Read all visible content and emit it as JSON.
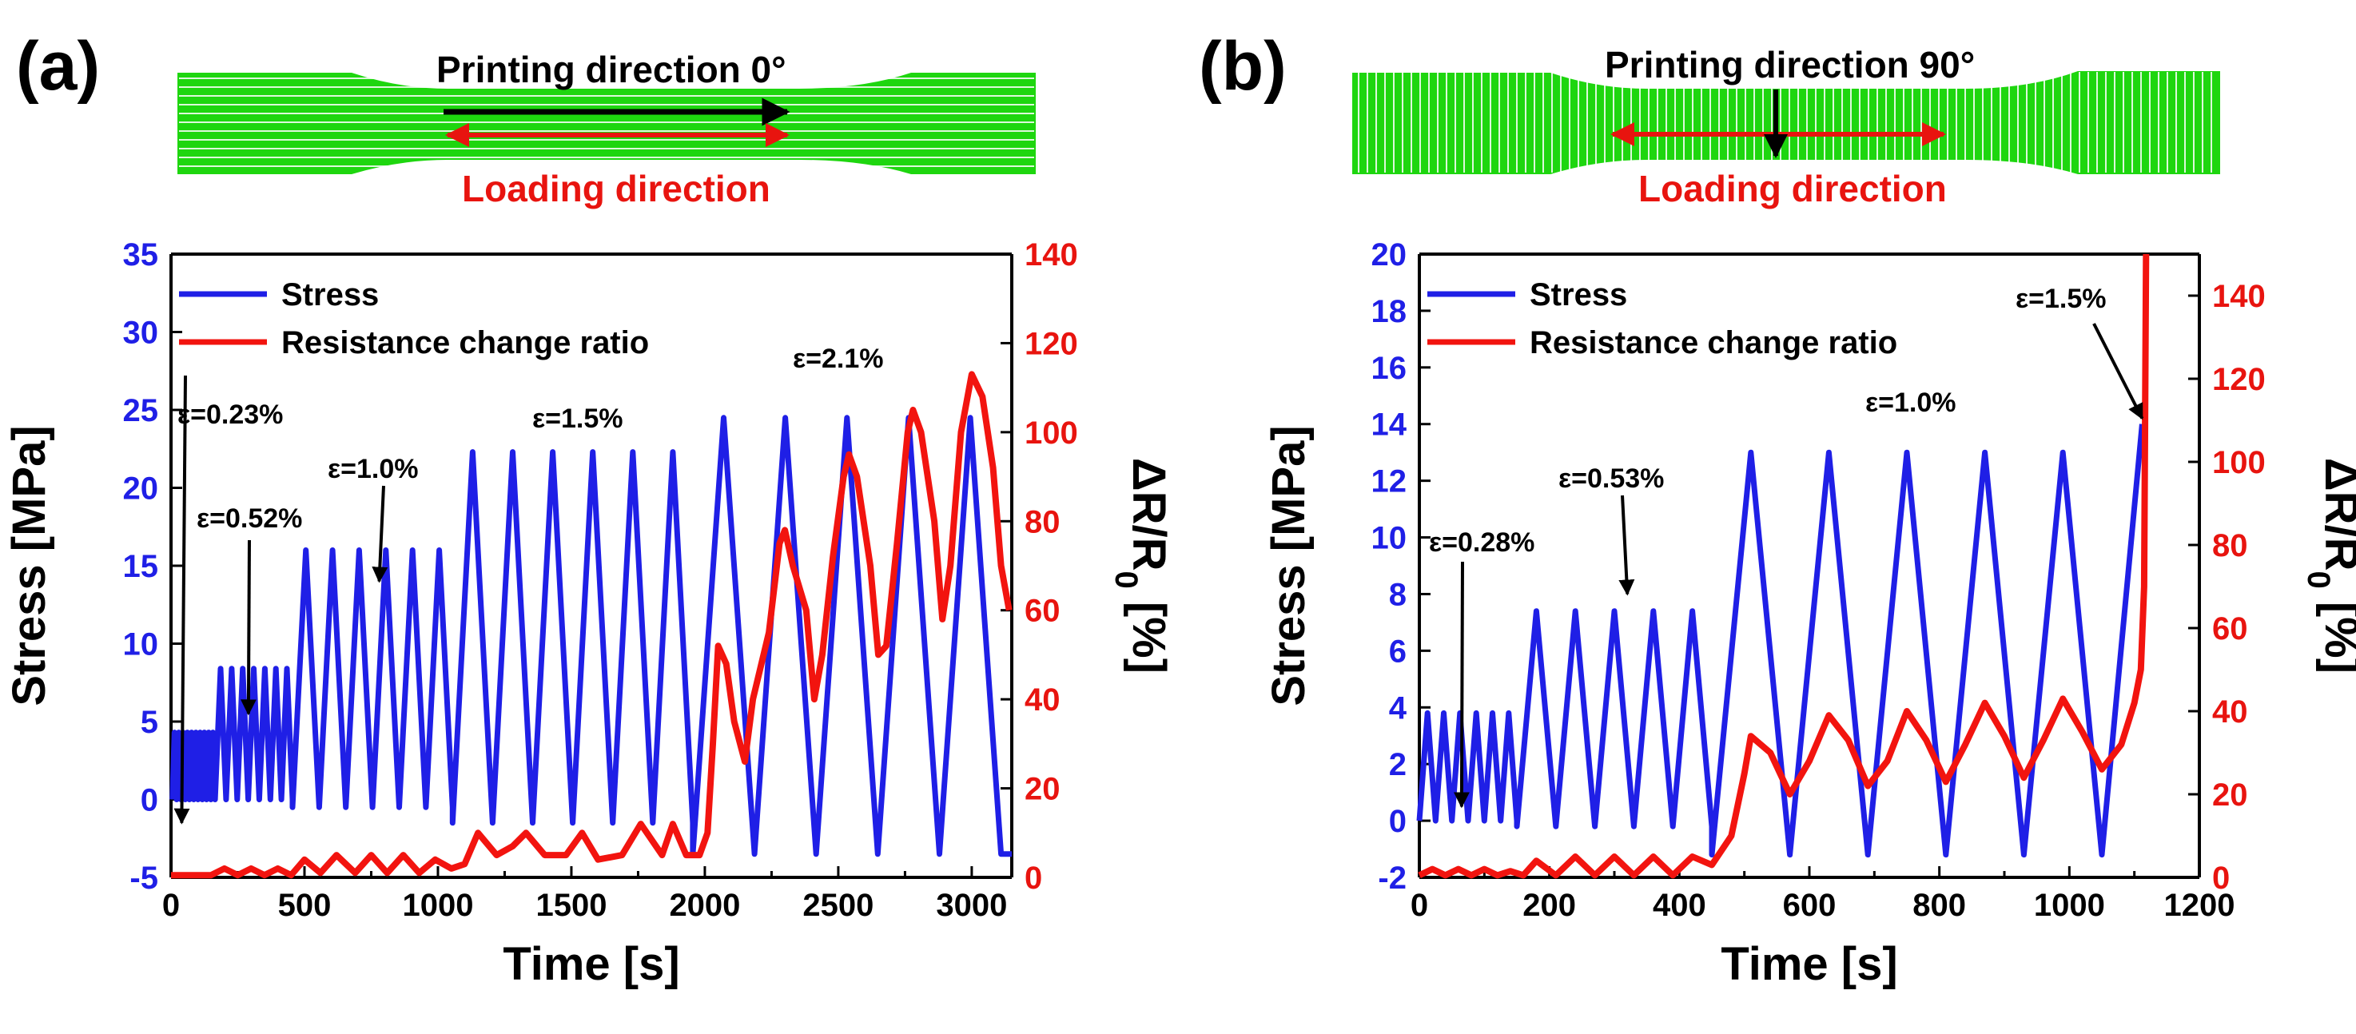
{
  "colors": {
    "stress": "#1f1fe6",
    "resistance": "#f2140f",
    "specimen": "#1ed60f",
    "specimen_lines": "#ffffff",
    "arrow_print": "#000000",
    "arrow_load": "#e8140f"
  },
  "panels": [
    {
      "label": "(a)",
      "diagram": {
        "title": "Printing direction 0°",
        "loading_label": "Loading direction",
        "raster": "horizontal"
      },
      "chart_data": {
        "type": "line",
        "xlabel": "Time [s]",
        "ylabel_left": "Stress [MPa]",
        "ylabel_right_main": "ΔR/R",
        "ylabel_right_sub": "0",
        "ylabel_right_tail": " [%]",
        "xlim": [
          0,
          3150
        ],
        "xticks": [
          0,
          500,
          1000,
          1500,
          2000,
          2500,
          3000
        ],
        "ylim_left": [
          -5,
          35
        ],
        "yticks_left": [
          -5,
          0,
          5,
          10,
          15,
          20,
          25,
          30,
          35
        ],
        "ylim_right": [
          0,
          140
        ],
        "yticks_right": [
          0,
          20,
          40,
          60,
          80,
          100,
          120,
          140
        ],
        "legend": [
          "Stress",
          "Resistance change ratio"
        ],
        "legend_position": "top-left",
        "series": [
          {
            "name": "Stress",
            "axis": "left",
            "segments": [
              {
                "t0": 5,
                "t1": 165,
                "min": 0,
                "max": 4.3,
                "cycles": 10
              },
              {
                "t0": 165,
                "t1": 455,
                "min": 0,
                "max": 8.4,
                "cycles": 7
              },
              {
                "t0": 455,
                "t1": 1055,
                "min": -0.5,
                "max": 16,
                "cycles": 6
              },
              {
                "t0": 1055,
                "t1": 1955,
                "min": -1.5,
                "max": 22.3,
                "cycles": 6
              },
              {
                "t0": 1955,
                "t1": 3110,
                "min": -3.5,
                "max": 24.5,
                "cycles": 5
              }
            ],
            "tail": [
              [
                3110,
                -3.5
              ],
              [
                3150,
                -3.5
              ]
            ]
          },
          {
            "name": "Resistance change ratio",
            "axis": "right",
            "points": [
              [
                0,
                0.5
              ],
              [
                150,
                0.5
              ],
              [
                200,
                2
              ],
              [
                250,
                0.5
              ],
              [
                300,
                2
              ],
              [
                350,
                0.5
              ],
              [
                400,
                2
              ],
              [
                450,
                0.5
              ],
              [
                500,
                4
              ],
              [
                560,
                1
              ],
              [
                620,
                5
              ],
              [
                690,
                1
              ],
              [
                750,
                5
              ],
              [
                810,
                1
              ],
              [
                870,
                5
              ],
              [
                930,
                1
              ],
              [
                990,
                4
              ],
              [
                1050,
                2
              ],
              [
                1100,
                3
              ],
              [
                1150,
                10
              ],
              [
                1220,
                5
              ],
              [
                1280,
                7
              ],
              [
                1330,
                10
              ],
              [
                1400,
                5
              ],
              [
                1480,
                5
              ],
              [
                1540,
                10
              ],
              [
                1600,
                4
              ],
              [
                1690,
                5
              ],
              [
                1760,
                12
              ],
              [
                1840,
                5
              ],
              [
                1880,
                12
              ],
              [
                1930,
                5
              ],
              [
                1980,
                5
              ],
              [
                2010,
                10
              ],
              [
                2030,
                30
              ],
              [
                2050,
                52
              ],
              [
                2080,
                48
              ],
              [
                2110,
                35
              ],
              [
                2150,
                26
              ],
              [
                2180,
                40
              ],
              [
                2240,
                55
              ],
              [
                2280,
                75
              ],
              [
                2300,
                78
              ],
              [
                2330,
                70
              ],
              [
                2380,
                60
              ],
              [
                2410,
                40
              ],
              [
                2440,
                50
              ],
              [
                2480,
                72
              ],
              [
                2520,
                90
              ],
              [
                2540,
                95
              ],
              [
                2570,
                90
              ],
              [
                2620,
                70
              ],
              [
                2650,
                50
              ],
              [
                2680,
                52
              ],
              [
                2720,
                75
              ],
              [
                2760,
                100
              ],
              [
                2780,
                105
              ],
              [
                2810,
                100
              ],
              [
                2860,
                80
              ],
              [
                2890,
                58
              ],
              [
                2920,
                70
              ],
              [
                2960,
                100
              ],
              [
                3000,
                113
              ],
              [
                3040,
                108
              ],
              [
                3080,
                92
              ],
              [
                3110,
                70
              ],
              [
                3140,
                60
              ]
            ]
          }
        ],
        "annotations": [
          {
            "text": "ε=0.23%",
            "arrow_target": [
              40,
              -1.5
            ]
          },
          {
            "text": "ε=0.52%",
            "arrow_target": [
              290,
              5.5
            ]
          },
          {
            "text": "ε=1.0%",
            "arrow_target": [
              780,
              14
            ]
          },
          {
            "text": "ε=1.5%",
            "arrow_target": null
          },
          {
            "text": "ε=2.1%",
            "arrow_target": null
          }
        ]
      }
    },
    {
      "label": "(b)",
      "diagram": {
        "title": "Printing direction 90°",
        "loading_label": "Loading direction",
        "raster": "vertical"
      },
      "chart_data": {
        "type": "line",
        "xlabel": "Time [s]",
        "ylabel_left": "Stress [MPa]",
        "ylabel_right_main": "ΔR/R",
        "ylabel_right_sub": "0",
        "ylabel_right_tail": " [%]",
        "xlim": [
          0,
          1200
        ],
        "xticks": [
          0,
          200,
          400,
          600,
          800,
          1000,
          1200
        ],
        "ylim_left": [
          -2,
          20
        ],
        "yticks_left": [
          -2,
          0,
          2,
          4,
          6,
          8,
          10,
          12,
          14,
          16,
          18,
          20
        ],
        "ylim_right": [
          0,
          150
        ],
        "yticks_right": [
          0,
          20,
          40,
          60,
          80,
          100,
          120,
          140
        ],
        "legend": [
          "Stress",
          "Resistance change ratio"
        ],
        "legend_position": "top-left",
        "series": [
          {
            "name": "Stress",
            "axis": "left",
            "segments": [
              {
                "t0": 0,
                "t1": 150,
                "min": 0,
                "max": 3.8,
                "cycles": 6
              },
              {
                "t0": 150,
                "t1": 450,
                "min": -0.2,
                "max": 7.4,
                "cycles": 5
              },
              {
                "t0": 450,
                "t1": 1050,
                "min": -1.2,
                "max": 13,
                "cycles": 5
              }
            ],
            "tail": [
              [
                1050,
                -1.2
              ],
              [
                1112,
                14
              ]
            ]
          },
          {
            "name": "Resistance change ratio",
            "axis": "right",
            "points": [
              [
                0,
                0.5
              ],
              [
                20,
                2
              ],
              [
                40,
                0.5
              ],
              [
                60,
                2
              ],
              [
                80,
                0.5
              ],
              [
                100,
                2
              ],
              [
                120,
                0.5
              ],
              [
                140,
                1.5
              ],
              [
                160,
                0.5
              ],
              [
                180,
                4
              ],
              [
                210,
                0.5
              ],
              [
                240,
                5
              ],
              [
                270,
                0.5
              ],
              [
                300,
                5
              ],
              [
                330,
                0.5
              ],
              [
                360,
                5
              ],
              [
                390,
                0.5
              ],
              [
                420,
                5
              ],
              [
                450,
                3
              ],
              [
                480,
                10
              ],
              [
                500,
                25
              ],
              [
                510,
                34
              ],
              [
                540,
                30
              ],
              [
                570,
                20
              ],
              [
                600,
                28
              ],
              [
                630,
                39
              ],
              [
                660,
                33
              ],
              [
                690,
                22
              ],
              [
                720,
                28
              ],
              [
                750,
                40
              ],
              [
                780,
                33
              ],
              [
                810,
                23
              ],
              [
                840,
                32
              ],
              [
                870,
                42
              ],
              [
                900,
                34
              ],
              [
                930,
                24
              ],
              [
                960,
                33
              ],
              [
                990,
                43
              ],
              [
                1020,
                35
              ],
              [
                1050,
                26
              ],
              [
                1080,
                32
              ],
              [
                1100,
                42
              ],
              [
                1110,
                50
              ],
              [
                1115,
                70
              ],
              [
                1118,
                150
              ]
            ]
          }
        ],
        "annotations": [
          {
            "text": "ε=0.28%",
            "arrow_target": [
              65,
              0.5
            ]
          },
          {
            "text": "ε=0.53%",
            "arrow_target": [
              320,
              8
            ]
          },
          {
            "text": "ε=1.0%",
            "arrow_target": null
          },
          {
            "text": "ε=1.5%",
            "arrow_target": [
              1112,
              14.2
            ]
          }
        ]
      }
    }
  ]
}
